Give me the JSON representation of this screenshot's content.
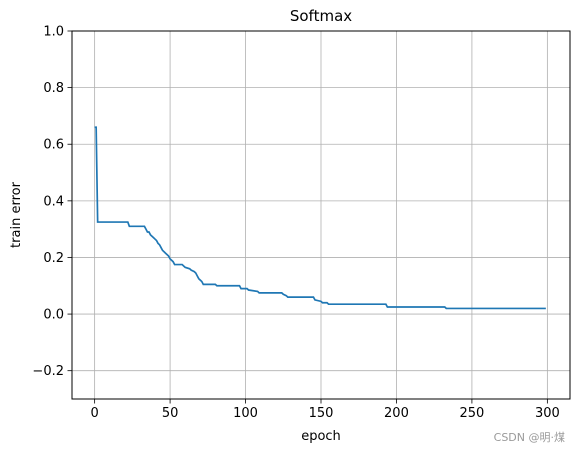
{
  "chart_data": {
    "type": "line",
    "title": "Softmax",
    "xlabel": "epoch",
    "ylabel": "train error",
    "xlim": [
      -15,
      315
    ],
    "ylim": [
      -0.3,
      1.0
    ],
    "xticks": [
      0,
      50,
      100,
      150,
      200,
      250,
      300
    ],
    "yticks": [
      -0.2,
      0.0,
      0.2,
      0.4,
      0.6,
      0.8,
      1.0
    ],
    "ytick_labels": [
      "−0.2",
      "0.0",
      "0.2",
      "0.4",
      "0.6",
      "0.8",
      "1.0"
    ],
    "grid": true,
    "line_color": "#1f77b4",
    "series": [
      {
        "x": [
          0,
          1,
          2,
          22,
          23,
          33,
          34,
          35,
          36,
          37,
          38,
          39,
          40,
          41,
          42,
          43,
          44,
          45,
          46,
          47,
          48,
          49,
          50,
          51,
          52,
          53,
          58,
          59,
          60,
          63,
          64,
          66,
          67,
          68,
          69,
          70,
          71,
          72,
          80,
          81,
          96,
          97,
          101,
          102,
          108,
          109,
          124,
          125,
          127,
          128,
          145,
          146,
          150,
          151,
          154,
          155,
          193,
          194,
          232,
          233,
          299
        ],
        "y": [
          0.66,
          0.66,
          0.325,
          0.325,
          0.31,
          0.31,
          0.3,
          0.29,
          0.29,
          0.28,
          0.275,
          0.27,
          0.265,
          0.26,
          0.25,
          0.245,
          0.235,
          0.225,
          0.22,
          0.215,
          0.21,
          0.205,
          0.195,
          0.19,
          0.185,
          0.175,
          0.175,
          0.17,
          0.165,
          0.16,
          0.155,
          0.15,
          0.145,
          0.135,
          0.125,
          0.12,
          0.115,
          0.105,
          0.105,
          0.1,
          0.1,
          0.09,
          0.09,
          0.085,
          0.08,
          0.075,
          0.075,
          0.07,
          0.065,
          0.06,
          0.06,
          0.05,
          0.045,
          0.04,
          0.04,
          0.035,
          0.035,
          0.025,
          0.025,
          0.02,
          0.02
        ]
      }
    ]
  },
  "watermark": "CSDN @明·煤"
}
